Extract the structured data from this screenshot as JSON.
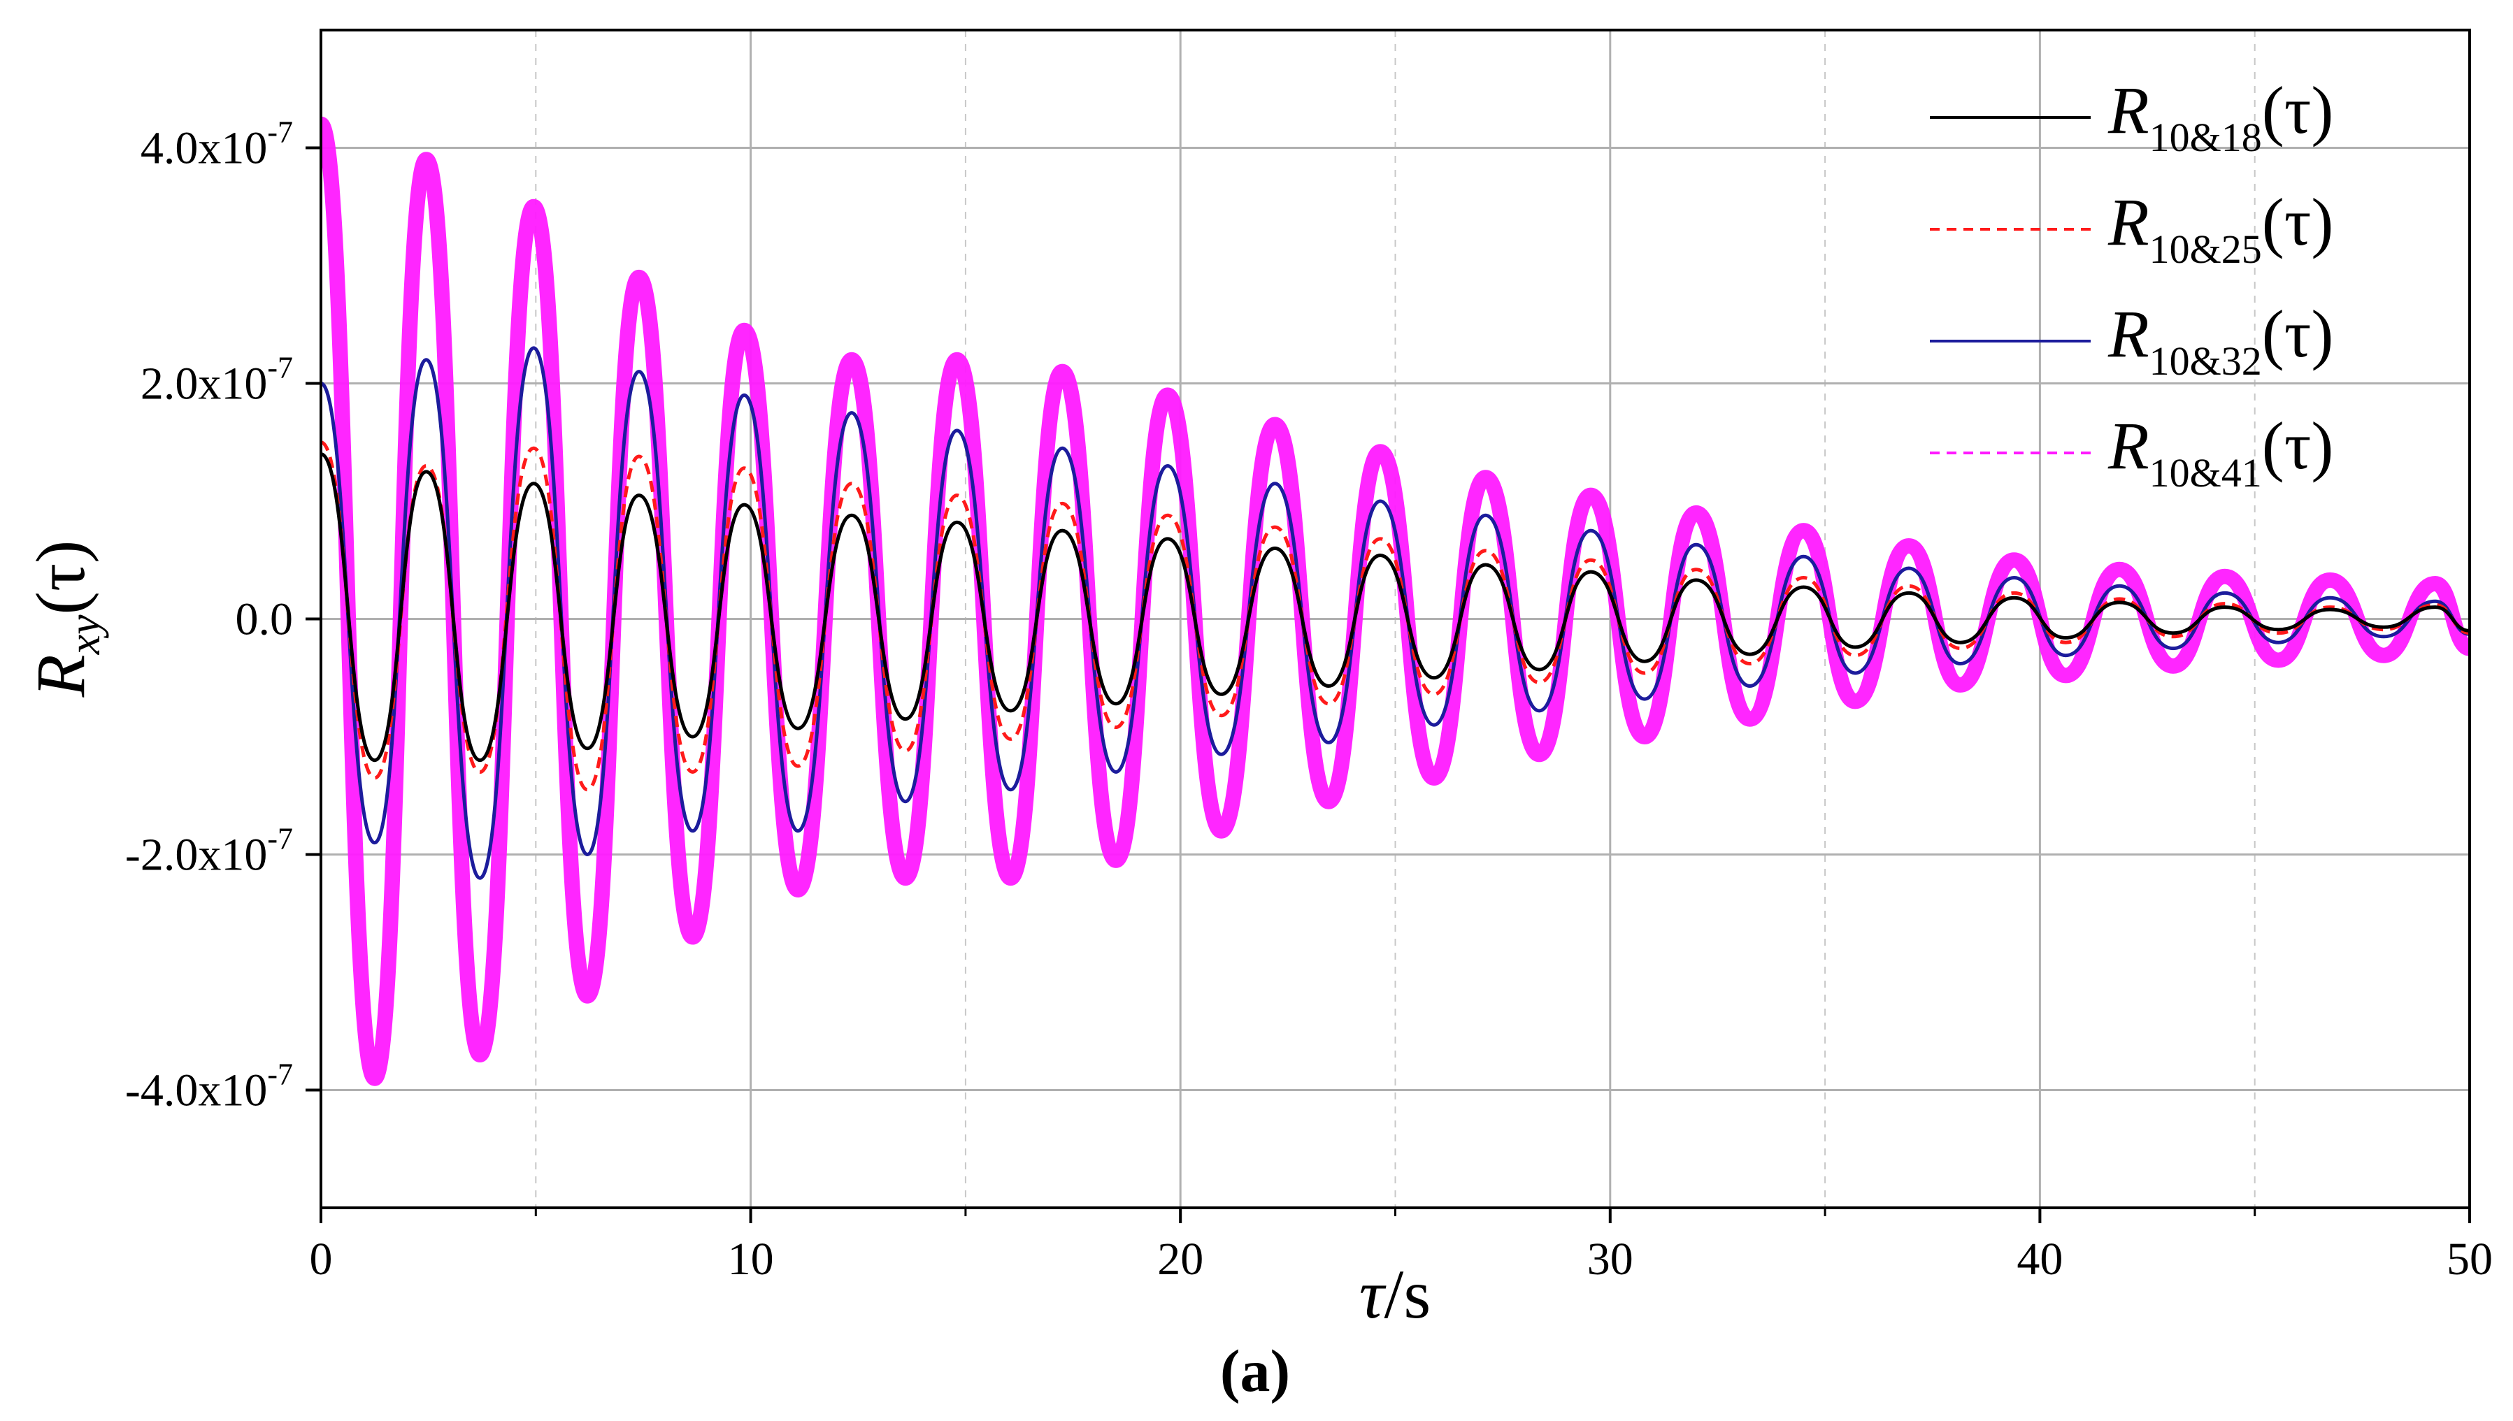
{
  "chart_data": {
    "type": "line",
    "title": "",
    "caption": "(a)",
    "xlabel": {
      "main": "τ",
      "suffix": "/s"
    },
    "ylabel": {
      "main": "R",
      "sub": "xy",
      "arg": "(τ)"
    },
    "xlim": [
      0,
      50
    ],
    "ylim": [
      -5e-07,
      5e-07
    ],
    "x_ticks": [
      0,
      10,
      20,
      30,
      40,
      50
    ],
    "x_tick_labels": [
      "0",
      "10",
      "20",
      "30",
      "40",
      "50"
    ],
    "y_ticks": [
      4e-07,
      2e-07,
      0,
      -2e-07,
      -4e-07
    ],
    "y_tick_labels": [
      {
        "mantissa": "4.0x10",
        "exp": "-7"
      },
      {
        "mantissa": "2.0x10",
        "exp": "-7"
      },
      {
        "mantissa": "0.0",
        "exp": ""
      },
      {
        "mantissa": "-2.0x10",
        "exp": "-7"
      },
      {
        "mantissa": "-4.0x10",
        "exp": "-7"
      }
    ],
    "grid": {
      "major": true,
      "minor_x": true
    },
    "legend_position": "top-right",
    "series": [
      {
        "name": "R10&18(τ)",
        "label_main": "R",
        "label_sub": "10&18",
        "label_arg": "(τ)",
        "color": "#000000",
        "dash": "solid",
        "x": [
          0,
          1.25,
          2.45,
          3.7,
          4.95,
          6.2,
          7.4,
          8.65,
          9.85,
          11.1,
          12.35,
          13.6,
          14.8,
          16.05,
          17.25,
          18.5,
          19.7,
          20.95,
          22.2,
          23.45,
          24.65,
          25.9,
          27.1,
          28.35,
          29.55,
          30.8,
          32.0,
          33.25,
          34.5,
          35.7,
          36.95,
          38.15,
          39.4,
          40.6,
          41.85,
          43.1,
          44.3,
          45.55,
          46.75,
          48.0,
          49.2,
          50
        ],
        "y": [
          1.4e-07,
          -1.2e-07,
          1.25e-07,
          -1.2e-07,
          1.15e-07,
          -1.1e-07,
          1.05e-07,
          -1e-07,
          9.7e-08,
          -9.3e-08,
          8.8e-08,
          -8.5e-08,
          8.2e-08,
          -7.8e-08,
          7.5e-08,
          -7.2e-08,
          6.8e-08,
          -6.4e-08,
          6e-08,
          -5.7e-08,
          5.4e-08,
          -5e-08,
          4.6e-08,
          -4.3e-08,
          4e-08,
          -3.6e-08,
          3.3e-08,
          -3e-08,
          2.7e-08,
          -2.4e-08,
          2.2e-08,
          -2e-08,
          1.8e-08,
          -1.6e-08,
          1.4e-08,
          -1.2e-08,
          1e-08,
          -9e-09,
          8e-09,
          -7e-09,
          1e-08,
          -1e-08
        ]
      },
      {
        "name": "R10&25(τ)",
        "label_main": "R",
        "label_sub": "10&25",
        "label_arg": "(τ)",
        "color": "#ff1a1a",
        "dash": "dashed",
        "x": [
          0,
          1.25,
          2.45,
          3.7,
          4.95,
          6.2,
          7.4,
          8.65,
          9.85,
          11.1,
          12.35,
          13.6,
          14.8,
          16.05,
          17.25,
          18.5,
          19.7,
          20.95,
          22.2,
          23.45,
          24.65,
          25.9,
          27.1,
          28.35,
          29.55,
          30.8,
          32.0,
          33.25,
          34.5,
          35.7,
          36.95,
          38.15,
          39.4,
          40.6,
          41.85,
          43.1,
          44.3,
          45.55,
          46.75,
          48.0,
          49.2,
          50
        ],
        "y": [
          1.5e-07,
          -1.35e-07,
          1.3e-07,
          -1.3e-07,
          1.45e-07,
          -1.45e-07,
          1.38e-07,
          -1.3e-07,
          1.28e-07,
          -1.25e-07,
          1.15e-07,
          -1.12e-07,
          1.05e-07,
          -1.02e-07,
          9.8e-08,
          -9.2e-08,
          8.8e-08,
          -8.2e-08,
          7.8e-08,
          -7.2e-08,
          6.8e-08,
          -6.4e-08,
          5.8e-08,
          -5.4e-08,
          5e-08,
          -4.6e-08,
          4.2e-08,
          -3.8e-08,
          3.5e-08,
          -3.1e-08,
          2.8e-08,
          -2.5e-08,
          2.2e-08,
          -2e-08,
          1.7e-08,
          -1.5e-08,
          1.3e-08,
          -1.2e-08,
          1e-08,
          -9e-09,
          1.2e-08,
          -1.2e-08
        ]
      },
      {
        "name": "R10&32(τ)",
        "label_main": "R",
        "label_sub": "10&32",
        "label_arg": "(τ)",
        "color": "#1c1c9c",
        "dash": "solid",
        "x": [
          0,
          1.25,
          2.45,
          3.7,
          4.95,
          6.2,
          7.4,
          8.65,
          9.85,
          11.1,
          12.35,
          13.6,
          14.8,
          16.05,
          17.25,
          18.5,
          19.7,
          20.95,
          22.2,
          23.45,
          24.65,
          25.9,
          27.1,
          28.35,
          29.55,
          30.8,
          32.0,
          33.25,
          34.5,
          35.7,
          36.95,
          38.15,
          39.4,
          40.6,
          41.85,
          43.1,
          44.3,
          45.55,
          46.75,
          48.0,
          49.2,
          50
        ],
        "y": [
          2e-07,
          -1.9e-07,
          2.2e-07,
          -2.2e-07,
          2.3e-07,
          -2e-07,
          2.1e-07,
          -1.8e-07,
          1.9e-07,
          -1.8e-07,
          1.75e-07,
          -1.55e-07,
          1.6e-07,
          -1.45e-07,
          1.45e-07,
          -1.3e-07,
          1.3e-07,
          -1.15e-07,
          1.15e-07,
          -1.05e-07,
          1e-07,
          -9e-08,
          8.8e-08,
          -7.8e-08,
          7.5e-08,
          -6.8e-08,
          6.3e-08,
          -5.7e-08,
          5.3e-08,
          -4.6e-08,
          4.3e-08,
          -3.8e-08,
          3.5e-08,
          -3.1e-08,
          2.8e-08,
          -2.5e-08,
          2.2e-08,
          -2e-08,
          1.8e-08,
          -1.5e-08,
          1.5e-08,
          -1.3e-08
        ]
      },
      {
        "name": "R10&41(τ)",
        "label_main": "R",
        "label_sub": "10&41",
        "label_arg": "(τ)",
        "color": "#ff1aff",
        "dash": "dashed",
        "x": [
          0,
          1.25,
          2.45,
          3.7,
          4.95,
          6.2,
          7.4,
          8.65,
          9.85,
          11.1,
          12.35,
          13.6,
          14.8,
          16.05,
          17.25,
          18.5,
          19.7,
          20.95,
          22.2,
          23.45,
          24.65,
          25.9,
          27.1,
          28.35,
          29.55,
          30.8,
          32.0,
          33.25,
          34.5,
          35.7,
          36.95,
          38.15,
          39.4,
          40.6,
          41.85,
          43.1,
          44.3,
          45.55,
          46.75,
          48.0,
          49.2,
          50
        ],
        "y": [
          4.2e-07,
          -3.9e-07,
          3.9e-07,
          -3.7e-07,
          3.5e-07,
          -3.2e-07,
          2.9e-07,
          -2.7e-07,
          2.45e-07,
          -2.3e-07,
          2.2e-07,
          -2.2e-07,
          2.2e-07,
          -2.2e-07,
          2.1e-07,
          -2.05e-07,
          1.9e-07,
          -1.8e-07,
          1.65e-07,
          -1.55e-07,
          1.42e-07,
          -1.35e-07,
          1.2e-07,
          -1.15e-07,
          1.05e-07,
          -1e-07,
          9e-08,
          -8.5e-08,
          7.5e-08,
          -7e-08,
          6.2e-08,
          -5.6e-08,
          5e-08,
          -4.8e-08,
          4.2e-08,
          -4e-08,
          3.6e-08,
          -3.5e-08,
          3.3e-08,
          -3.1e-08,
          3e-08,
          -2.5e-08
        ]
      }
    ]
  }
}
